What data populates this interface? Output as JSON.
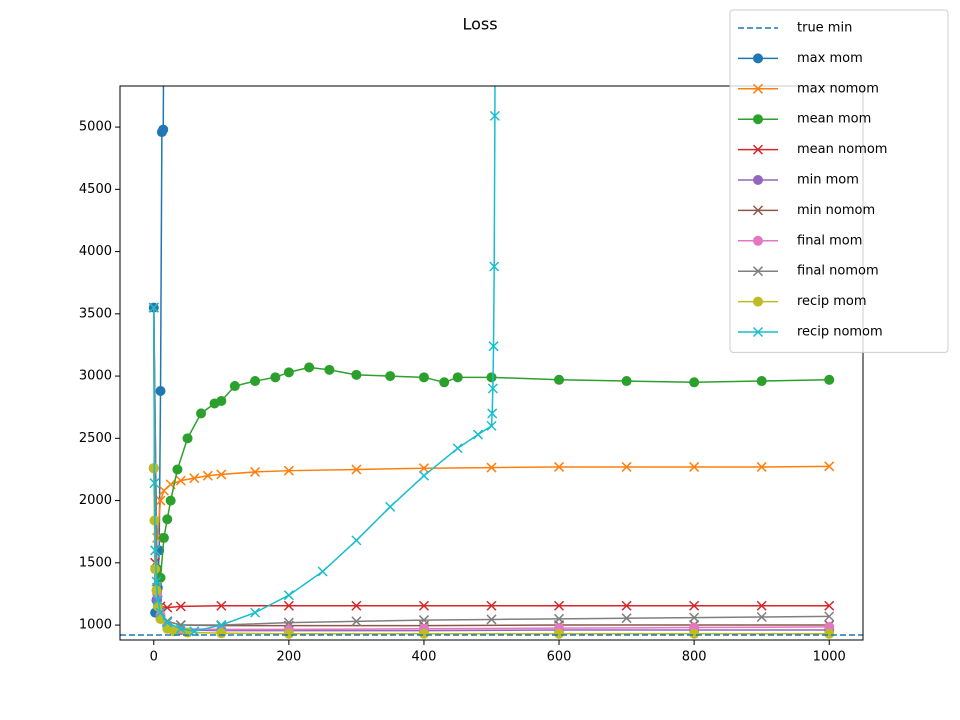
{
  "chart_data": {
    "type": "line",
    "title": "Loss",
    "xlim": [
      -50,
      1050
    ],
    "ylim": [
      880,
      5330
    ],
    "xticks": [
      0,
      200,
      400,
      600,
      800,
      1000
    ],
    "yticks": [
      1000,
      1500,
      2000,
      2500,
      3000,
      3500,
      4000,
      4500,
      5000
    ],
    "reference_line": {
      "name": "true min",
      "value": 920,
      "color": "#1f77b4",
      "style": "dashed"
    },
    "series": [
      {
        "name": "max mom",
        "color": "#1f77b4",
        "marker": "o",
        "x": [
          0,
          2,
          4,
          6,
          8,
          10,
          12,
          14,
          16
        ],
        "values": [
          3550,
          1100,
          1200,
          1300,
          1600,
          2880,
          4960,
          4980,
          7000
        ]
      },
      {
        "name": "max nomom",
        "color": "#ff7f0e",
        "marker": "x",
        "x": [
          0,
          2,
          5,
          10,
          15,
          25,
          40,
          60,
          80,
          100,
          150,
          200,
          300,
          400,
          500,
          600,
          700,
          800,
          900,
          1000
        ],
        "values": [
          3550,
          1600,
          1700,
          2000,
          2080,
          2130,
          2160,
          2180,
          2200,
          2210,
          2230,
          2240,
          2250,
          2260,
          2265,
          2270,
          2270,
          2270,
          2270,
          2275
        ]
      },
      {
        "name": "mean mom",
        "color": "#2ca02c",
        "marker": "o",
        "x": [
          0,
          5,
          10,
          15,
          20,
          25,
          35,
          50,
          70,
          90,
          100,
          120,
          150,
          180,
          200,
          230,
          260,
          300,
          350,
          400,
          430,
          450,
          500,
          600,
          700,
          800,
          900,
          1000
        ],
        "values": [
          2260,
          1450,
          1380,
          1700,
          1850,
          2000,
          2250,
          2500,
          2700,
          2780,
          2800,
          2920,
          2960,
          2990,
          3030,
          3070,
          3050,
          3010,
          3000,
          2990,
          2950,
          2990,
          2990,
          2970,
          2960,
          2950,
          2960,
          2970
        ]
      },
      {
        "name": "mean nomom",
        "color": "#d62728",
        "marker": "x",
        "x": [
          0,
          2,
          5,
          10,
          20,
          40,
          100,
          200,
          300,
          400,
          500,
          600,
          700,
          800,
          900,
          1000
        ],
        "values": [
          3550,
          1500,
          1250,
          1150,
          1140,
          1150,
          1155,
          1155,
          1155,
          1155,
          1155,
          1155,
          1155,
          1155,
          1155,
          1155
        ]
      },
      {
        "name": "min mom",
        "color": "#9467bd",
        "marker": "o",
        "x": [
          0,
          5,
          10,
          20,
          40,
          100,
          200,
          400,
          600,
          800,
          1000
        ],
        "values": [
          2260,
          1200,
          1050,
          990,
          960,
          955,
          955,
          955,
          960,
          960,
          960
        ]
      },
      {
        "name": "min nomom",
        "color": "#8c564b",
        "marker": "x",
        "x": [
          0,
          5,
          10,
          20,
          40,
          100,
          200,
          400,
          600,
          800,
          1000
        ],
        "values": [
          3550,
          1300,
          1100,
          1030,
          1000,
          995,
          995,
          995,
          1000,
          1000,
          1000
        ]
      },
      {
        "name": "final mom",
        "color": "#e377c2",
        "marker": "o",
        "x": [
          0,
          5,
          10,
          20,
          40,
          100,
          200,
          400,
          600,
          800,
          1000
        ],
        "values": [
          2260,
          1250,
          1080,
          1000,
          970,
          965,
          965,
          970,
          975,
          980,
          985
        ]
      },
      {
        "name": "final nomom",
        "color": "#7f7f7f",
        "marker": "x",
        "x": [
          0,
          5,
          10,
          20,
          40,
          100,
          200,
          300,
          400,
          500,
          600,
          700,
          800,
          900,
          1000
        ],
        "values": [
          3550,
          1300,
          1100,
          1030,
          1000,
          1000,
          1020,
          1030,
          1040,
          1045,
          1050,
          1055,
          1060,
          1065,
          1070
        ]
      },
      {
        "name": "recip mom",
        "color": "#bcbd22",
        "marker": "o",
        "x": [
          0,
          1,
          2,
          4,
          6,
          10,
          20,
          30,
          50,
          100,
          200,
          400,
          600,
          800,
          1000
        ],
        "values": [
          2260,
          1840,
          1450,
          1280,
          1150,
          1050,
          970,
          950,
          940,
          935,
          930,
          930,
          930,
          930,
          930
        ]
      },
      {
        "name": "recip nomom",
        "color": "#17becf",
        "marker": "x",
        "x": [
          0,
          1,
          2,
          4,
          6,
          10,
          20,
          40,
          60,
          100,
          150,
          200,
          250,
          300,
          350,
          400,
          450,
          480,
          500,
          501,
          502,
          503,
          504,
          505,
          506
        ],
        "values": [
          3550,
          2140,
          1600,
          1350,
          1200,
          1100,
          1020,
          970,
          950,
          1000,
          1100,
          1240,
          1430,
          1680,
          1950,
          2200,
          2420,
          2530,
          2600,
          2700,
          2900,
          3240,
          3880,
          5090,
          7000
        ]
      }
    ]
  }
}
